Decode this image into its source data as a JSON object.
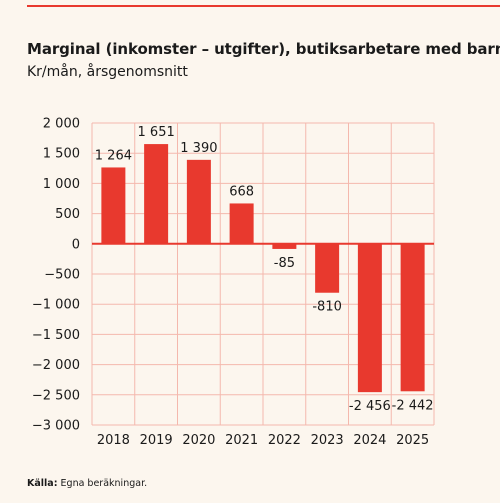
{
  "title": "Marginal (inkomster – utgifter), butiksarbetare med barn",
  "subtitle": "Kr/mån, årsgenomsnitt",
  "source_label": "Källa:",
  "source_text": "Egna beräkningar.",
  "colors": {
    "bar": "#e8392e",
    "grid": "#f4b8ad",
    "background": "#fcf6ee",
    "text": "#1a1a1a"
  },
  "chart_data": {
    "type": "bar",
    "categories": [
      "2018",
      "2019",
      "2020",
      "2021",
      "2022",
      "2023",
      "2024",
      "2025"
    ],
    "values": [
      1264,
      1651,
      1390,
      668,
      -85,
      -810,
      -2456,
      -2442
    ],
    "value_labels": [
      "1 264",
      "1 651",
      "1 390",
      "668",
      "-85",
      "-810",
      "-2 456",
      "-2 442"
    ],
    "yticks": [
      2000,
      1500,
      1000,
      500,
      0,
      -500,
      -1000,
      -1500,
      -2000,
      -2500,
      -3000
    ],
    "ytick_labels": [
      "2 000",
      "1 500",
      "1 000",
      "500",
      "0",
      "−500",
      "−1 000",
      "−1 500",
      "−2 000",
      "−2 500",
      "−3 000"
    ],
    "ylim": [
      -3000,
      2000
    ],
    "grid": true
  }
}
